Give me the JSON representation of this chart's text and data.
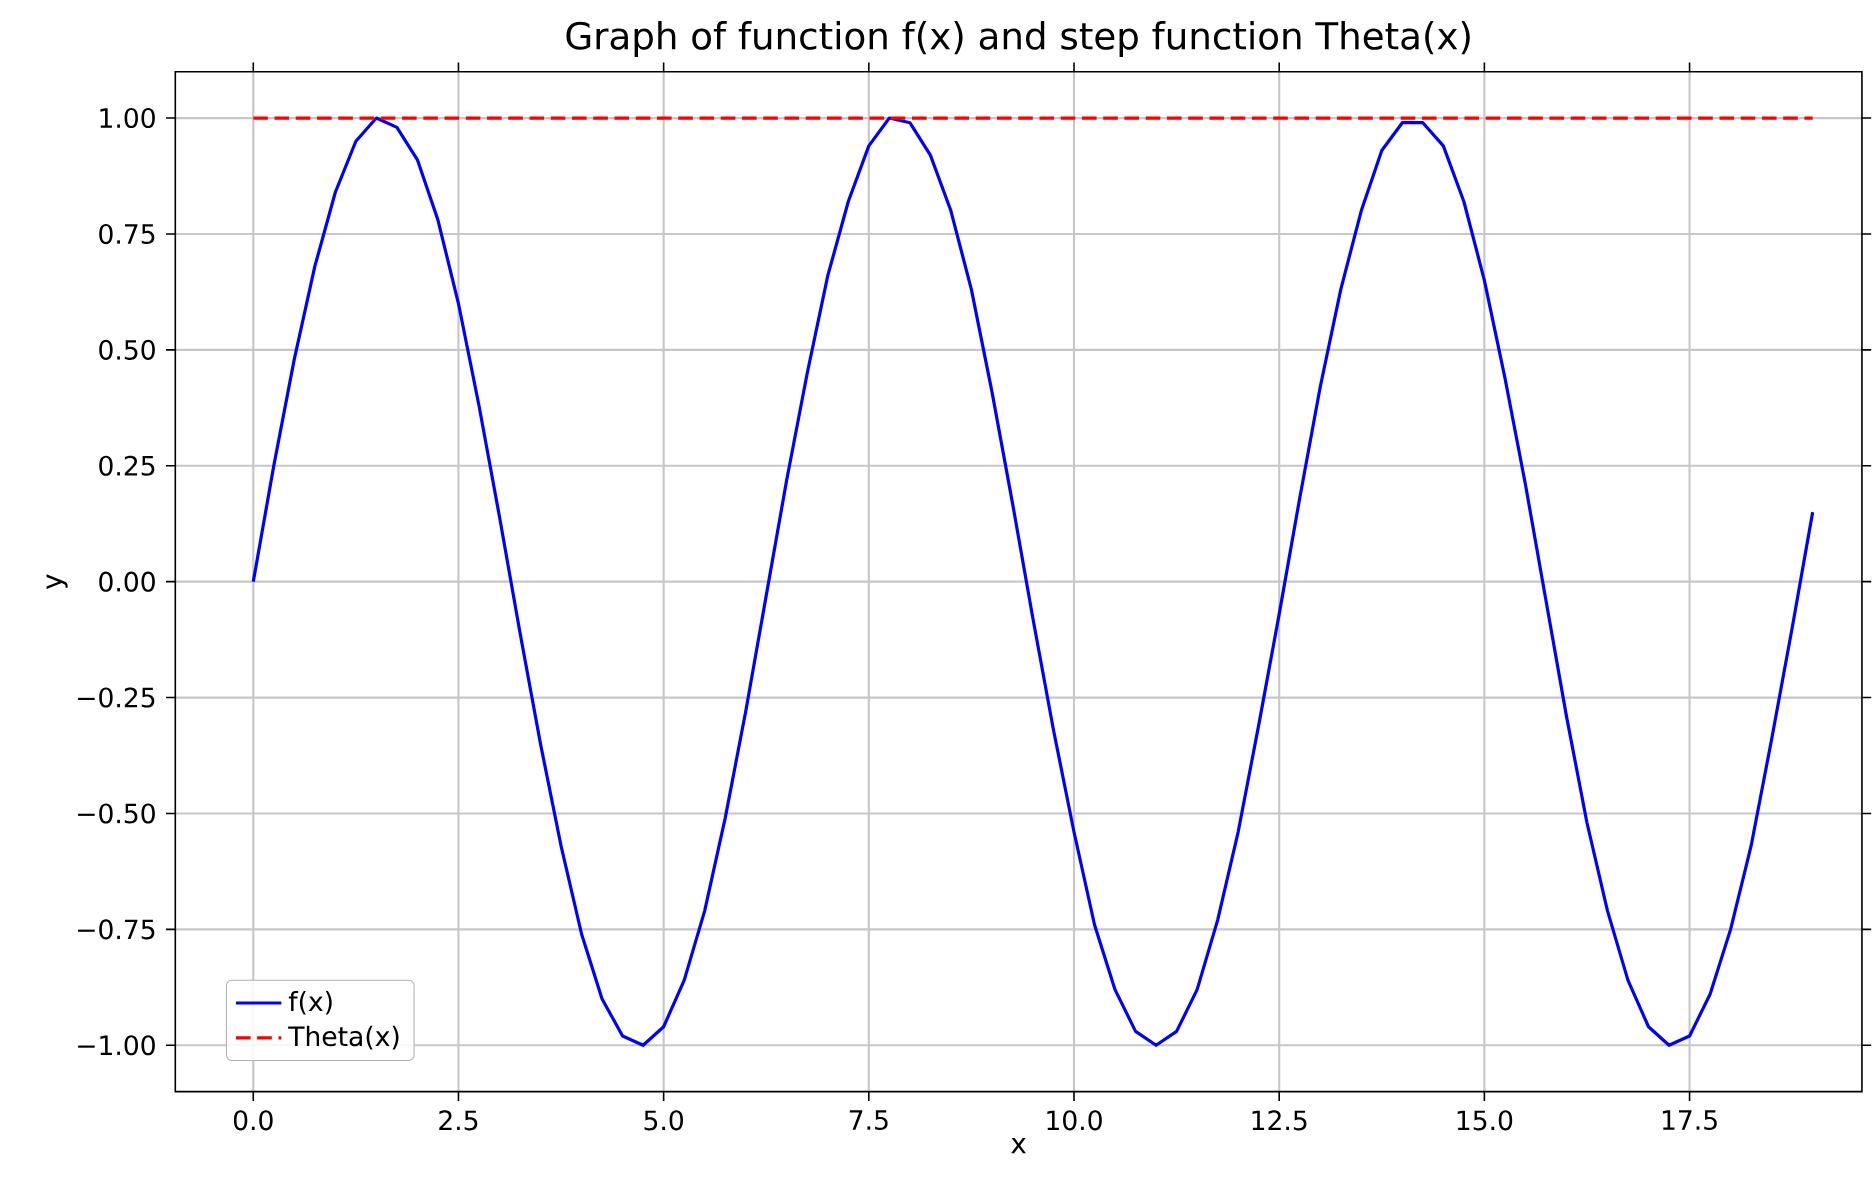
{
  "chart_data": {
    "type": "line",
    "title": "Graph of function f(x) and step function Theta(x)",
    "xlabel": "x",
    "ylabel": "y",
    "xlim": [
      -0.95,
      19.6
    ],
    "ylim": [
      -1.1,
      1.1
    ],
    "xticks": [
      {
        "value": 0,
        "label": "0.0"
      },
      {
        "value": 2.5,
        "label": "2.5"
      },
      {
        "value": 5,
        "label": "5.0"
      },
      {
        "value": 7.5,
        "label": "7.5"
      },
      {
        "value": 10,
        "label": "10.0"
      },
      {
        "value": 12.5,
        "label": "12.5"
      },
      {
        "value": 15,
        "label": "15.0"
      },
      {
        "value": 17.5,
        "label": "17.5"
      }
    ],
    "yticks": [
      {
        "value": -1,
        "label": "−1.00"
      },
      {
        "value": -0.75,
        "label": "−0.75"
      },
      {
        "value": -0.5,
        "label": "−0.50"
      },
      {
        "value": -0.25,
        "label": "−0.25"
      },
      {
        "value": 0,
        "label": "0.00"
      },
      {
        "value": 0.25,
        "label": "0.25"
      },
      {
        "value": 0.5,
        "label": "0.50"
      },
      {
        "value": 0.75,
        "label": "0.75"
      },
      {
        "value": 1,
        "label": "1.00"
      }
    ],
    "grid": true,
    "legend": "bottom left",
    "series": [
      {
        "name": "f(x)",
        "color": "#0000ff",
        "line_style": "solid",
        "x": [
          0,
          0.25,
          0.5,
          0.75,
          1,
          1.25,
          1.5,
          1.75,
          2,
          2.25,
          2.5,
          2.75,
          3,
          3.25,
          3.5,
          3.75,
          4,
          4.25,
          4.5,
          4.75,
          5,
          5.25,
          5.5,
          5.75,
          6,
          6.25,
          6.5,
          6.75,
          7,
          7.25,
          7.5,
          7.75,
          8,
          8.25,
          8.5,
          8.75,
          9,
          9.25,
          9.5,
          9.75,
          10,
          10.25,
          10.5,
          10.75,
          11,
          11.25,
          11.5,
          11.75,
          12,
          12.25,
          12.5,
          12.75,
          13,
          13.25,
          13.5,
          13.75,
          14,
          14.25,
          14.5,
          14.75,
          15,
          15.25,
          15.5,
          15.75,
          16,
          16.25,
          16.5,
          16.75,
          17,
          17.25,
          17.5,
          17.75,
          18,
          18.25,
          18.5,
          18.75,
          19
        ],
        "values": [
          0,
          0.25,
          0.48,
          0.68,
          0.84,
          0.95,
          1.0,
          0.98,
          0.91,
          0.78,
          0.6,
          0.38,
          0.14,
          -0.11,
          -0.35,
          -0.57,
          -0.76,
          -0.9,
          -0.98,
          -1.0,
          -0.96,
          -0.86,
          -0.71,
          -0.51,
          -0.28,
          -0.03,
          0.22,
          0.45,
          0.66,
          0.82,
          0.94,
          1.0,
          0.99,
          0.92,
          0.8,
          0.63,
          0.41,
          0.17,
          -0.08,
          -0.32,
          -0.54,
          -0.74,
          -0.88,
          -0.97,
          -1.0,
          -0.97,
          -0.88,
          -0.73,
          -0.54,
          -0.31,
          -0.07,
          0.18,
          0.42,
          0.63,
          0.8,
          0.93,
          0.99,
          0.99,
          0.94,
          0.82,
          0.65,
          0.44,
          0.21,
          -0.04,
          -0.29,
          -0.52,
          -0.71,
          -0.86,
          -0.96,
          -1.0,
          -0.98,
          -0.89,
          -0.75,
          -0.57,
          -0.34,
          -0.1,
          0.15
        ]
      },
      {
        "name": "Theta(x)",
        "color": "#ff0000",
        "line_style": "dashed",
        "x": [
          0,
          19
        ],
        "values": [
          1,
          1
        ]
      }
    ]
  }
}
